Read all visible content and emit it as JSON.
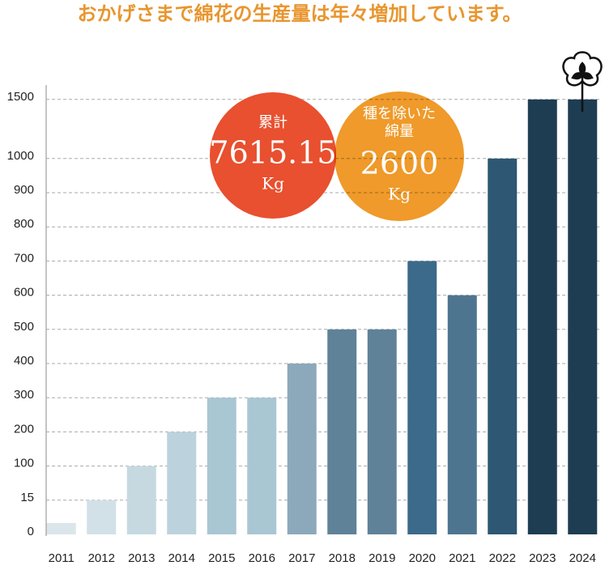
{
  "chart_data": {
    "type": "bar",
    "title": "おかげさまで綿花の生産量は年々増加しています。",
    "categories": [
      "2011",
      "2012",
      "2013",
      "2014",
      "2015",
      "2016",
      "2017",
      "2018",
      "2019",
      "2020",
      "2021",
      "2022",
      "2023",
      "2024"
    ],
    "values": [
      5,
      15,
      100,
      200,
      300,
      300,
      400,
      500,
      500,
      700,
      600,
      1000,
      1500,
      1500
    ],
    "colors": [
      "#dbe6ea",
      "#d2e1e7",
      "#c6d9e0",
      "#bcd2dc",
      "#a9c6d3",
      "#a9c6d3",
      "#8ba9bb",
      "#5f8299",
      "#5f8299",
      "#3c6a8a",
      "#4e7590",
      "#2d5772",
      "#1e3d52",
      "#1e3d52"
    ],
    "ylim": [
      0,
      1500
    ],
    "yticks": [
      0,
      15,
      100,
      200,
      300,
      400,
      500,
      600,
      700,
      800,
      900,
      1000,
      1500
    ],
    "grid": true,
    "annotations": {
      "total": {
        "label": "累計",
        "value": "7615.15",
        "unit": "Kg",
        "color": "#e8502f"
      },
      "cotton": {
        "label1": "種を除いた",
        "label2": "綿量",
        "value": "2600",
        "unit": "Kg",
        "color": "#ef9a2a"
      }
    }
  }
}
